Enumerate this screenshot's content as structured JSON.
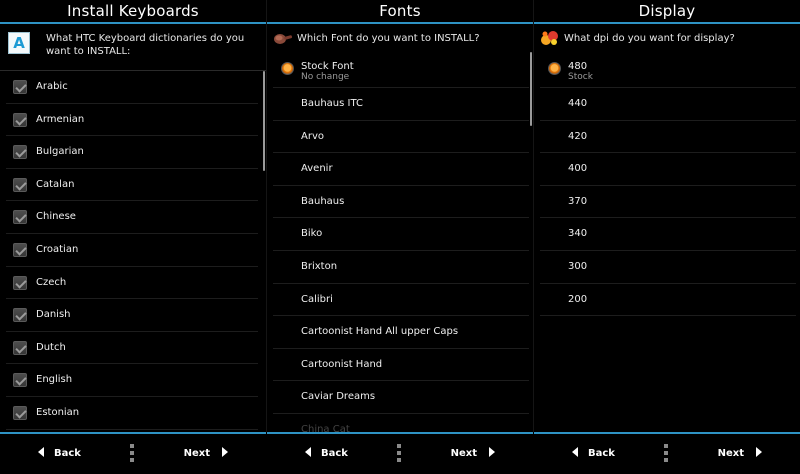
{
  "keyboards": {
    "title": "Install Keyboards",
    "prompt": "What HTC Keyboard dictionaries do you want to INSTALL:",
    "items": [
      "Arabic",
      "Armenian",
      "Bulgarian",
      "Catalan",
      "Chinese",
      "Croatian",
      "Czech",
      "Danish",
      "Dutch",
      "English",
      "Estonian"
    ],
    "back_label": "Back",
    "next_label": "Next"
  },
  "fonts": {
    "title": "Fonts",
    "prompt": "Which Font do you want to INSTALL?",
    "selected": {
      "name": "Stock Font",
      "sub": "No change"
    },
    "items": [
      "Bauhaus ITC",
      "Arvo",
      "Avenir",
      "Bauhaus",
      "Biko",
      "Brixton",
      "Calibri",
      "Cartoonist Hand All upper Caps",
      "Cartoonist Hand",
      "Caviar Dreams"
    ],
    "partial_item": "China Cat",
    "back_label": "Back",
    "next_label": "Next"
  },
  "display": {
    "title": "Display",
    "prompt": "What dpi do you want for display?",
    "selected": {
      "name": "480",
      "sub": "Stock"
    },
    "items": [
      "440",
      "420",
      "400",
      "370",
      "340",
      "300",
      "200"
    ],
    "back_label": "Back",
    "next_label": "Next"
  },
  "colors": {
    "accent": "#2e93c4",
    "radio": "#e57e12",
    "background": "#000000"
  },
  "icons": {
    "keyboard": "letter-a-icon",
    "font": "paint-brush-icon",
    "display": "color-dots-icon",
    "back": "triangle-left-icon",
    "next": "triangle-right-icon",
    "grip": "grip-dots-icon"
  }
}
